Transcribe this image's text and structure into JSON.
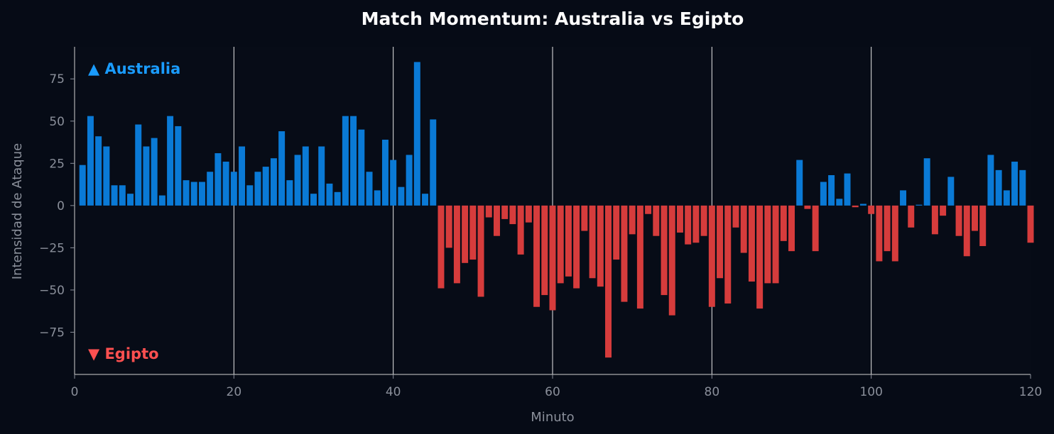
{
  "chart_data": {
    "type": "bar",
    "title": "Match Momentum: Australia vs Egipto",
    "xlabel": "Minuto",
    "ylabel": "Intensidad de Ataque",
    "xlim": [
      0,
      120
    ],
    "ylim": [
      -100,
      94
    ],
    "xticks": [
      0,
      20,
      40,
      60,
      80,
      100,
      120
    ],
    "yticks": [
      -75,
      -50,
      -25,
      0,
      25,
      50,
      75
    ],
    "x_gridlines": [
      20,
      40,
      60,
      80,
      100
    ],
    "grid": "vertical",
    "annotations": {
      "top": "▲ Australia",
      "bottom": "▼ Egipto"
    },
    "colors": {
      "positive": "#0a7ad6",
      "negative": "#d63c3c",
      "top_label": "#1a9cff",
      "bottom_label": "#ff5050",
      "background": "#060b16",
      "grid": "#e8e8e8"
    },
    "x": [
      1,
      2,
      3,
      4,
      5,
      6,
      7,
      8,
      9,
      10,
      11,
      12,
      13,
      14,
      15,
      16,
      17,
      18,
      19,
      20,
      21,
      22,
      23,
      24,
      25,
      26,
      27,
      28,
      29,
      30,
      31,
      32,
      33,
      34,
      35,
      36,
      37,
      38,
      39,
      40,
      41,
      42,
      43,
      44,
      45,
      46,
      47,
      48,
      49,
      50,
      51,
      52,
      53,
      54,
      55,
      56,
      57,
      58,
      59,
      60,
      61,
      62,
      63,
      64,
      65,
      66,
      67,
      68,
      69,
      70,
      71,
      72,
      73,
      74,
      75,
      76,
      77,
      78,
      79,
      80,
      81,
      82,
      83,
      84,
      85,
      86,
      87,
      88,
      89,
      90,
      91,
      92,
      93,
      94,
      95,
      96,
      97,
      98,
      99,
      100,
      101,
      102,
      103,
      104,
      105,
      106,
      107,
      108,
      109,
      110,
      111,
      112,
      113,
      114,
      115,
      116,
      117,
      118,
      119,
      120
    ],
    "values": [
      24,
      53,
      41,
      35,
      12,
      12,
      7,
      48,
      35,
      40,
      6,
      53,
      47,
      15,
      14,
      14,
      20,
      31,
      26,
      20,
      35,
      12,
      20,
      23,
      28,
      44,
      15,
      30,
      35,
      7,
      35,
      13,
      8,
      53,
      53,
      45,
      20,
      9,
      39,
      27,
      11,
      30,
      85,
      7,
      51,
      -49,
      -25,
      -46,
      -34,
      -32,
      -54,
      -7,
      -18,
      -8,
      -11,
      -29,
      -10,
      -60,
      -53,
      -62,
      -46,
      -42,
      -49,
      -15,
      -43,
      -48,
      -90,
      -32,
      -57,
      -17,
      -61,
      -5,
      -18,
      -53,
      -65,
      -16,
      -23,
      -22,
      -18,
      -60,
      -43,
      -58,
      -13,
      -28,
      -45,
      -61,
      -46,
      -46,
      -21,
      -27,
      27,
      -2,
      -27,
      14,
      18,
      4,
      19,
      -1,
      1,
      -5,
      -33,
      -27,
      -33,
      9,
      -13,
      0.5,
      28,
      -17,
      -6,
      17,
      -18,
      -30,
      -15,
      -24,
      30,
      21,
      9,
      26,
      21,
      -22
    ]
  }
}
